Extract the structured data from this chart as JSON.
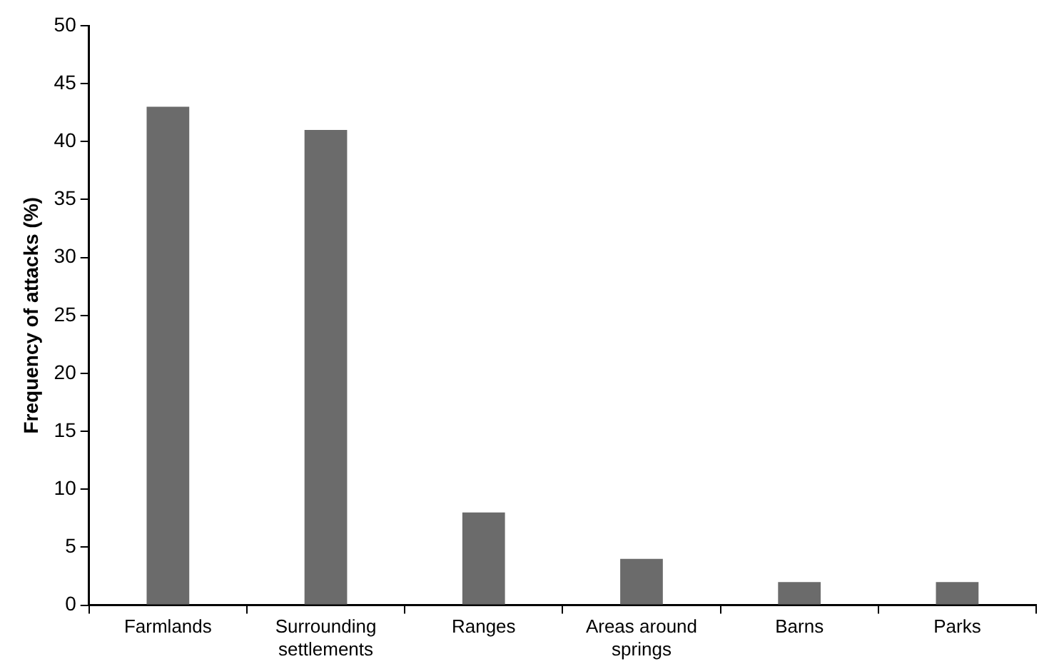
{
  "chart_data": {
    "type": "bar",
    "ylabel": "Frequency of attacks (%)",
    "categories": [
      "Farmlands",
      "Surrounding settlements",
      "Ranges",
      "Areas around springs",
      "Barns",
      "Parks"
    ],
    "values": [
      43,
      41,
      8,
      4,
      2,
      2
    ],
    "color": "#6b6b6b",
    "ylim": [
      0,
      50
    ],
    "yticks": [
      0,
      5,
      10,
      15,
      20,
      25,
      30,
      35,
      40,
      45,
      50
    ],
    "grid": false,
    "legend": false
  }
}
